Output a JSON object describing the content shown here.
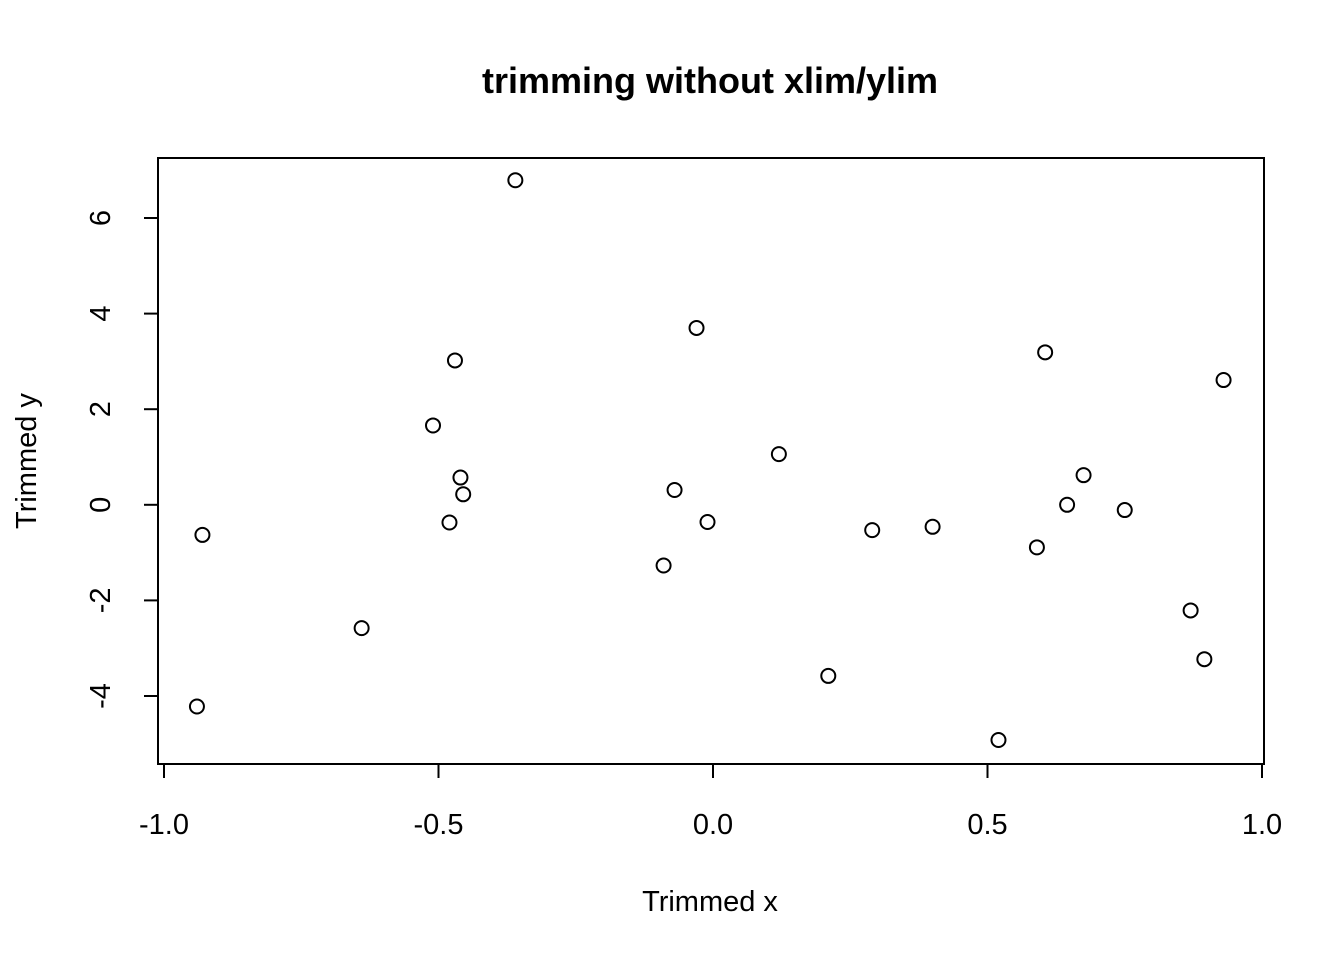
{
  "chart_data": {
    "type": "scatter",
    "title": "trimming without xlim/ylim",
    "xlabel": "Trimmed x",
    "ylabel": "Trimmed y",
    "xlim": [
      -1.0,
      1.0
    ],
    "ylim": [
      -5.0,
      7.0
    ],
    "x_ticks": [
      -1.0,
      -0.5,
      0.0,
      0.5,
      1.0
    ],
    "x_tick_labels": [
      "-1.0",
      "-0.5",
      "0.0",
      "0.5",
      "1.0"
    ],
    "y_ticks": [
      -4,
      -2,
      0,
      2,
      4,
      6
    ],
    "y_tick_labels": [
      "-4",
      "-2",
      "0",
      "2",
      "4",
      "6"
    ],
    "grid": false,
    "marker": "open-circle",
    "points": [
      {
        "x": -0.93,
        "y": -0.63
      },
      {
        "x": -0.94,
        "y": -4.22
      },
      {
        "x": -0.64,
        "y": -2.58
      },
      {
        "x": -0.51,
        "y": 1.66
      },
      {
        "x": -0.47,
        "y": 3.02
      },
      {
        "x": -0.46,
        "y": 0.57
      },
      {
        "x": -0.455,
        "y": 0.22
      },
      {
        "x": -0.48,
        "y": -0.37
      },
      {
        "x": -0.36,
        "y": 6.79
      },
      {
        "x": -0.09,
        "y": -1.27
      },
      {
        "x": -0.07,
        "y": 0.31
      },
      {
        "x": -0.03,
        "y": 3.7
      },
      {
        "x": -0.01,
        "y": -0.36
      },
      {
        "x": 0.12,
        "y": 1.06
      },
      {
        "x": 0.21,
        "y": -3.58
      },
      {
        "x": 0.29,
        "y": -0.53
      },
      {
        "x": 0.4,
        "y": -0.46
      },
      {
        "x": 0.52,
        "y": -4.92
      },
      {
        "x": 0.59,
        "y": -0.89
      },
      {
        "x": 0.605,
        "y": 3.19
      },
      {
        "x": 0.645,
        "y": 0.0
      },
      {
        "x": 0.675,
        "y": 0.62
      },
      {
        "x": 0.75,
        "y": -0.11
      },
      {
        "x": 0.87,
        "y": -2.21
      },
      {
        "x": 0.895,
        "y": -3.23
      },
      {
        "x": 0.93,
        "y": 2.61
      }
    ]
  }
}
